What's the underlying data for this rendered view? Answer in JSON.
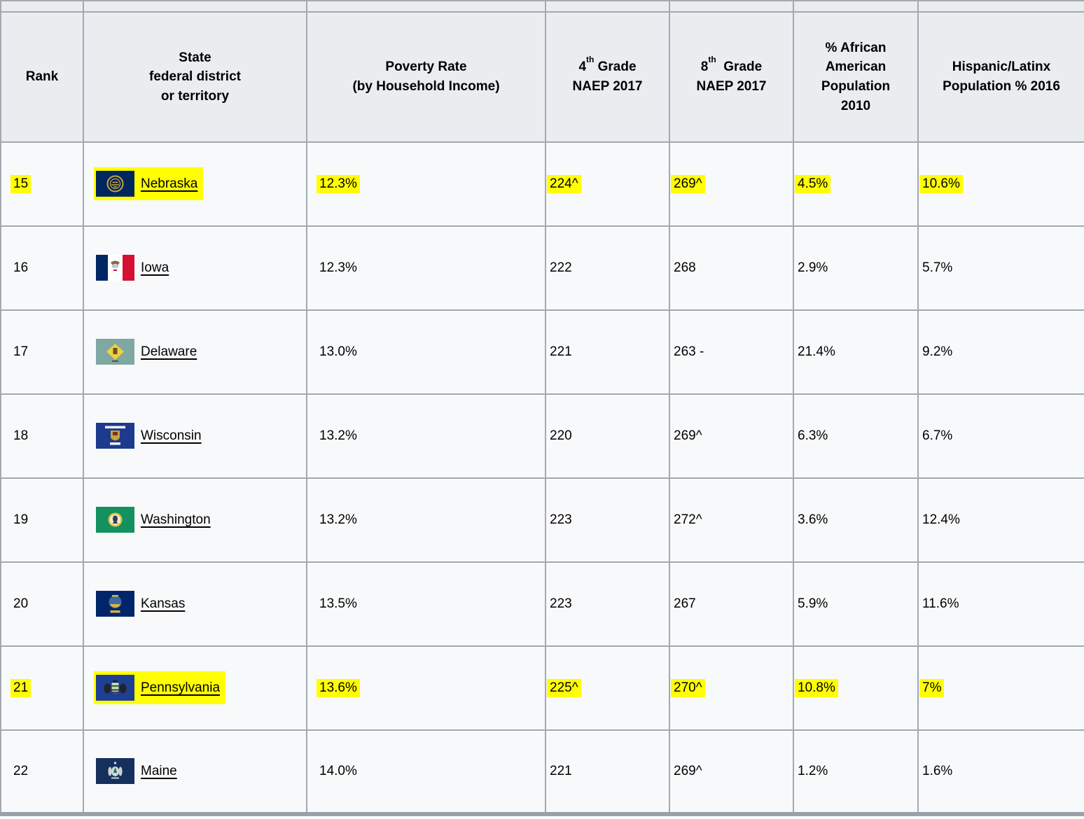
{
  "table": {
    "headers": {
      "rank": "Rank",
      "state": "State\nfederal district\nor territory",
      "poverty": "Poverty Rate\n(by Household Income)",
      "naep4": {
        "num": "4",
        "sup": "th",
        "rest": " Grade",
        "line2": "NAEP 2017"
      },
      "naep8": {
        "num": "8",
        "sup": "th",
        "rest": "  Grade",
        "line2": "NAEP 2017"
      },
      "afam": "% African\nAmerican\nPopulation\n2010",
      "hispanic": "Hispanic/Latinx\nPopulation % 2016"
    },
    "rows": [
      {
        "rank": "15",
        "state": "Nebraska",
        "flag": "nebraska-flag",
        "poverty": "12.3%",
        "naep4": "224^",
        "naep8": "269^",
        "afam": "4.5%",
        "hispanic": "10.6%",
        "highlighted": true
      },
      {
        "rank": "16",
        "state": "Iowa",
        "flag": "iowa-flag",
        "poverty": "12.3%",
        "naep4": "222",
        "naep8": "268",
        "afam": "2.9%",
        "hispanic": "5.7%",
        "highlighted": false
      },
      {
        "rank": "17",
        "state": "Delaware",
        "flag": "delaware-flag",
        "poverty": "13.0%",
        "naep4": "221",
        "naep8": "263 -",
        "afam": "21.4%",
        "hispanic": "9.2%",
        "highlighted": false
      },
      {
        "rank": "18",
        "state": "Wisconsin",
        "flag": "wisconsin-flag",
        "poverty": "13.2%",
        "naep4": "220",
        "naep8": "269^",
        "afam": "6.3%",
        "hispanic": "6.7%",
        "highlighted": false
      },
      {
        "rank": "19",
        "state": "Washington",
        "flag": "washington-flag",
        "poverty": "13.2%",
        "naep4": "223",
        "naep8": "272^",
        "afam": "3.6%",
        "hispanic": "12.4%",
        "highlighted": false
      },
      {
        "rank": "20",
        "state": "Kansas",
        "flag": "kansas-flag",
        "poverty": "13.5%",
        "naep4": "223",
        "naep8": "267",
        "afam": "5.9%",
        "hispanic": "11.6%",
        "highlighted": false
      },
      {
        "rank": "21",
        "state": "Pennsylvania",
        "flag": "pennsylvania-flag",
        "poverty": "13.6%",
        "naep4": "225^",
        "naep8": "270^",
        "afam": "10.8%",
        "hispanic": "7%",
        "highlighted": true
      },
      {
        "rank": "22",
        "state": "Maine",
        "flag": "maine-flag",
        "poverty": "14.0%",
        "naep4": "221",
        "naep8": "269^",
        "afam": "1.2%",
        "hispanic": "1.6%",
        "highlighted": false
      }
    ]
  },
  "flags": {
    "nebraska-flag": {
      "type": "nebraska",
      "field": "#00265e",
      "seal": "#c8a43c"
    },
    "iowa-flag": {
      "type": "iowa",
      "blue": "#002663",
      "white": "#ffffff",
      "red": "#d41035",
      "eagle": "#8a6d45",
      "scroll": "#b9c6de"
    },
    "delaware-flag": {
      "type": "delaware",
      "field": "#7fa8a2",
      "diamond": "#efd23c",
      "emblem": "#6b4f2a",
      "text": "#4a4a42"
    },
    "wisconsin-flag": {
      "type": "wisconsin",
      "field": "#1c3b8e",
      "text": "#ffffff",
      "emblem": "#c8a43c",
      "emblem2": "#7a2e2e"
    },
    "washington-flag": {
      "type": "washington",
      "field": "#13915e",
      "ring": "#e3c23f",
      "inner": "#efefe4",
      "portrait": "#3c3c46"
    },
    "kansas-flag": {
      "type": "kansas",
      "field": "#00256a",
      "seal_sky": "#3b6ba5",
      "seal_gold": "#d9b23c",
      "text": "#d9b23c"
    },
    "pennsylvania-flag": {
      "type": "pennsylvania",
      "field": "#1d3f94",
      "horse": "#23232b",
      "shield": "#e8e4d8",
      "shield_green": "#3f7a3f",
      "accent": "#a03030"
    },
    "maine-flag": {
      "type": "maine",
      "field": "#16305e",
      "shield": "#c9dbe4",
      "tree": "#2e6b35",
      "support": "#cdd3cf",
      "star": "#e8e8e8"
    }
  },
  "colors": {
    "highlight": "#ffff00",
    "header_bg": "#eaecf0",
    "cell_bg": "#f8f9fa",
    "border": "#a2a9b1",
    "border_strong": "#9ba1a9",
    "text": "#000000"
  }
}
